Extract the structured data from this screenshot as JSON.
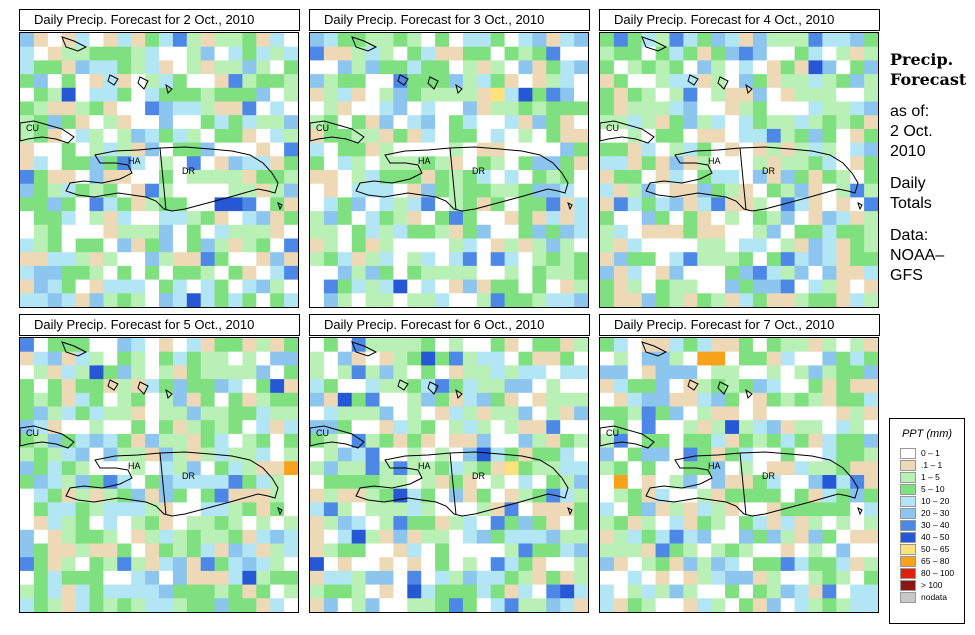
{
  "panels": [
    {
      "title": "Daily Precip. Forecast for  2 Oct., 2010",
      "seed": 11,
      "base": 0.3,
      "hot": []
    },
    {
      "title": "Daily Precip. Forecast for  3 Oct., 2010",
      "seed": 23,
      "base": 0.1,
      "hot": [
        {
          "r": 4,
          "c": 13,
          "v": 8
        }
      ]
    },
    {
      "title": "Daily Precip. Forecast for  4 Oct., 2010",
      "seed": 37,
      "base": 0.35,
      "hot": []
    },
    {
      "title": "Daily Precip. Forecast for  5 Oct., 2010",
      "seed": 41,
      "base": 0.4,
      "hot": [
        {
          "r": 9,
          "c": 19,
          "v": 9
        }
      ]
    },
    {
      "title": "Daily Precip. Forecast for  6 Oct., 2010",
      "seed": 53,
      "base": 0.35,
      "hot": [
        {
          "r": 9,
          "c": 14,
          "v": 8
        }
      ]
    },
    {
      "title": "Daily Precip. Forecast for  7 Oct., 2010",
      "seed": 67,
      "base": 0.45,
      "hot": [
        {
          "r": 1,
          "c": 7,
          "v": 9
        },
        {
          "r": 1,
          "c": 8,
          "v": 9
        },
        {
          "r": 10,
          "c": 1,
          "v": 9
        }
      ]
    }
  ],
  "map_labels": {
    "cu": "CU",
    "ha": "HA",
    "dr": "DR"
  },
  "side": {
    "title_line1": "Precip.",
    "title_line2": "Forecast",
    "asof": "as of:",
    "date_line1": "2 Oct.",
    "date_line2": "2010",
    "totals_line1": "Daily",
    "totals_line2": "Totals",
    "data_line1": "Data:",
    "data_line2": "NOAA–",
    "data_line3": "GFS"
  },
  "legend": {
    "title": "PPT (mm)",
    "items": [
      {
        "label": "0 – 1",
        "color": "#ffffff"
      },
      {
        "label": ".1 – 1",
        "color": "#edd9b6"
      },
      {
        "label": "1 – 5",
        "color": "#b9f0b5"
      },
      {
        "label": "5 – 10",
        "color": "#7fe07f"
      },
      {
        "label": "10 – 20",
        "color": "#b3e6f5"
      },
      {
        "label": "20 – 30",
        "color": "#8cc5ee"
      },
      {
        "label": "30 – 40",
        "color": "#4d88e6"
      },
      {
        "label": "40 – 50",
        "color": "#2657d4"
      },
      {
        "label": "50 – 65",
        "color": "#fce27a"
      },
      {
        "label": "65 – 80",
        "color": "#f7a21a"
      },
      {
        "label": "80 – 100",
        "color": "#e0200f"
      },
      {
        "label": "> 100",
        "color": "#8c1515"
      },
      {
        "label": "nodata",
        "color": "#c8c8c8"
      }
    ]
  }
}
